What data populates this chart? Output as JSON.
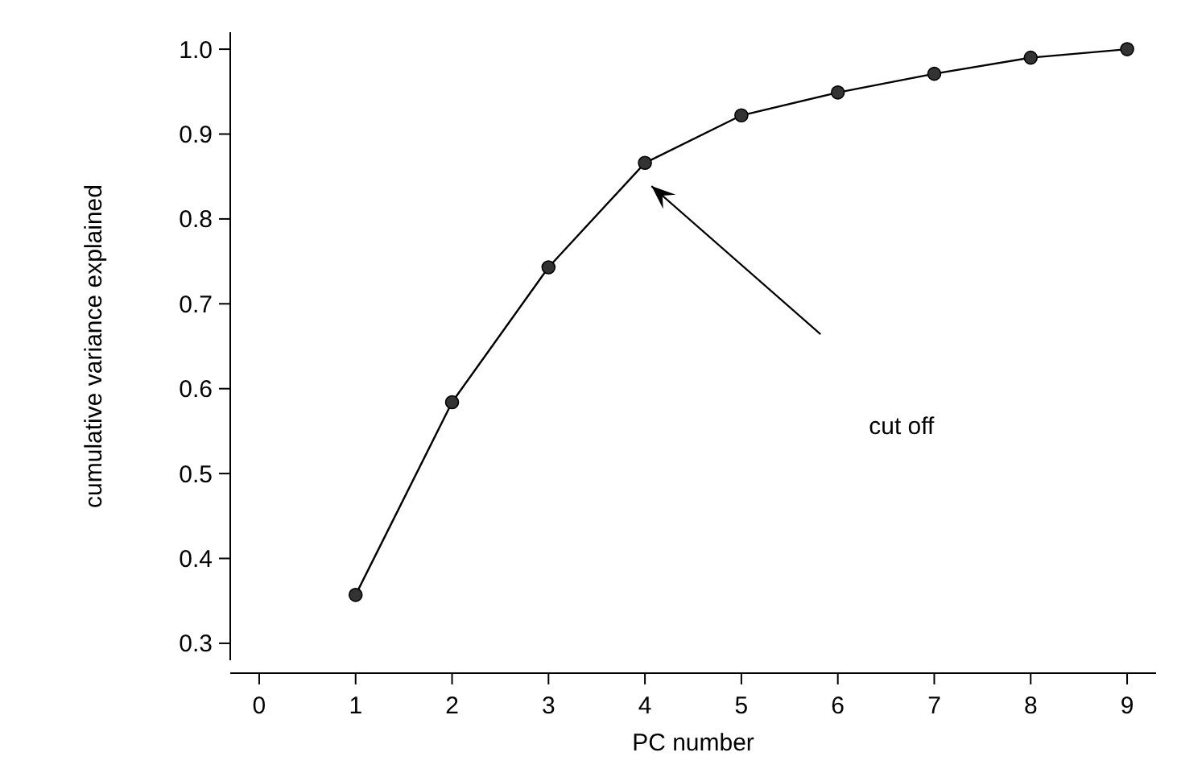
{
  "chart_data": {
    "type": "line",
    "xlabel": "PC number",
    "ylabel": "cumulative variance explained",
    "x": [
      1,
      2,
      3,
      4,
      5,
      6,
      7,
      8,
      9
    ],
    "series": [
      {
        "color": "#000000",
        "values": [
          0.357,
          0.584,
          0.743,
          0.866,
          0.922,
          0.949,
          0.971,
          0.99,
          1.0
        ]
      }
    ],
    "marker": "circle",
    "line_style": "solid",
    "xlim": [
      -0.3,
      9.3
    ],
    "xticks": [
      0,
      1,
      2,
      3,
      4,
      5,
      6,
      7,
      8,
      9
    ],
    "ylim": [
      0.28,
      1.02
    ],
    "yticks": [
      {
        "value": 0.3,
        "label": "0.3"
      },
      {
        "value": 0.4,
        "label": "0.4"
      },
      {
        "value": 0.5,
        "label": "0.5"
      },
      {
        "value": 0.6,
        "label": "0.6"
      },
      {
        "value": 0.7,
        "label": "0.7"
      },
      {
        "value": 0.8,
        "label": "0.8"
      },
      {
        "value": 0.9,
        "label": "0.9"
      },
      {
        "value": 1.0,
        "label": "1.0"
      }
    ],
    "annotations": [
      "cut off"
    ],
    "grid": false
  }
}
